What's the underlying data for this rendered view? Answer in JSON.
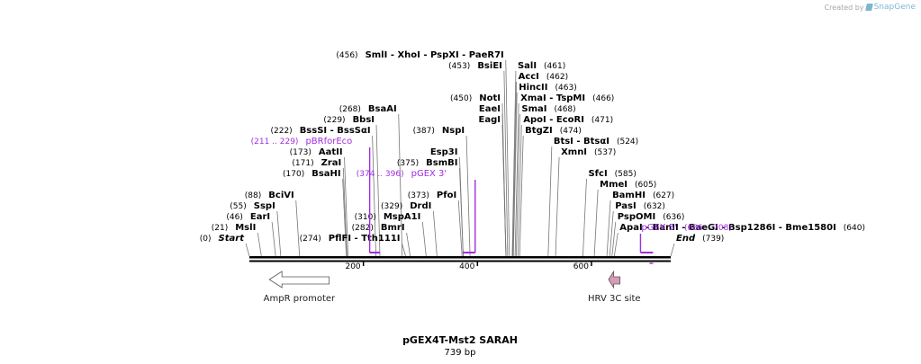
{
  "credit": {
    "prefix": "Created by",
    "brand": "SnapGene"
  },
  "title": "pGEX4T-Mst2 SARAH",
  "length_label": "739 bp",
  "total_bp": 739,
  "ticks": [
    {
      "bp": 200,
      "label": "200"
    },
    {
      "bp": 400,
      "label": "400"
    },
    {
      "bp": 600,
      "label": "600"
    }
  ],
  "sites": [
    {
      "pos_text": "(0)",
      "label": "Start",
      "bp": 0,
      "row": 0,
      "italic": true
    },
    {
      "pos_text": "(21)",
      "label": "MslI",
      "bp": 21,
      "row": 1
    },
    {
      "pos_text": "(46)",
      "label": "EarI",
      "bp": 46,
      "row": 2
    },
    {
      "pos_text": "(55)",
      "label": "SspI",
      "bp": 55,
      "row": 3
    },
    {
      "pos_text": "(88)",
      "label": "BciVI",
      "bp": 88,
      "row": 4
    },
    {
      "pos_text": "(170)",
      "label": "BsaHI",
      "bp": 170,
      "row": 6
    },
    {
      "pos_text": "(171)",
      "label": "ZraI",
      "bp": 171,
      "row": 7
    },
    {
      "pos_text": "(173)",
      "label": "AatII",
      "bp": 173,
      "row": 8
    },
    {
      "pos_text": "(222)",
      "label": "BssSI  - BssSαI",
      "bp": 222,
      "row": 10
    },
    {
      "pos_text": "(229)",
      "label": "BbsI",
      "bp": 229,
      "row": 11
    },
    {
      "pos_text": "(268)",
      "label": "BsaAI",
      "bp": 268,
      "row": 12
    },
    {
      "pos_text": "(274)",
      "label": "PflFI  - Tth111I",
      "bp": 274,
      "row": 0
    },
    {
      "pos_text": "(282)",
      "label": "BmrI",
      "bp": 282,
      "row": 1
    },
    {
      "pos_text": "(310)",
      "label": "MspA1I",
      "bp": 310,
      "row": 2
    },
    {
      "pos_text": "(329)",
      "label": "DrdI",
      "bp": 329,
      "row": 3
    },
    {
      "pos_text": "(373)",
      "label": "PfoI",
      "bp": 373,
      "row": 4
    },
    {
      "pos_text": "(375)",
      "label": "BsmBI",
      "bp": 375,
      "row": 7
    },
    {
      "pos_text": "",
      "label": "Esp3I",
      "bp": 375,
      "row": 8
    },
    {
      "pos_text": "(387)",
      "label": "NspI",
      "bp": 387,
      "row": 10
    },
    {
      "pos_text": "",
      "label": "EagI",
      "bp": 450,
      "row": 11
    },
    {
      "pos_text": "",
      "label": "EaeI",
      "bp": 450,
      "row": 12
    },
    {
      "pos_text": "(450)",
      "label": "NotI",
      "bp": 450,
      "row": 13
    },
    {
      "pos_text": "(453)",
      "label": "BsiEI",
      "bp": 453,
      "row": 16
    },
    {
      "pos_text": "(456)",
      "label": "SmlI  - XhoI  - PspXI  - PaeR7I",
      "bp": 456,
      "row": 17
    },
    {
      "pos_text": "(461)",
      "label": "SalI",
      "bp": 461,
      "row": 16,
      "left": true
    },
    {
      "pos_text": "(462)",
      "label": "AccI",
      "bp": 462,
      "row": 15,
      "left": true
    },
    {
      "pos_text": "(463)",
      "label": "HincII",
      "bp": 463,
      "row": 14,
      "left": true
    },
    {
      "pos_text": "(466)",
      "label": "XmaI  - TspMI",
      "bp": 466,
      "row": 13,
      "left": true
    },
    {
      "pos_text": "(468)",
      "label": "SmaI",
      "bp": 468,
      "row": 12,
      "left": true
    },
    {
      "pos_text": "(471)",
      "label": "ApoI  - EcoRI",
      "bp": 471,
      "row": 11,
      "left": true
    },
    {
      "pos_text": "(474)",
      "label": "BtgZI",
      "bp": 474,
      "row": 10,
      "left": true
    },
    {
      "pos_text": "(524)",
      "label": "BtsI  - BtsαI",
      "bp": 524,
      "row": 9,
      "left": true
    },
    {
      "pos_text": "(537)",
      "label": "XmnI",
      "bp": 537,
      "row": 8,
      "left": true
    },
    {
      "pos_text": "(585)",
      "label": "SfcI",
      "bp": 585,
      "row": 6,
      "left": true
    },
    {
      "pos_text": "(605)",
      "label": "MmeI",
      "bp": 605,
      "row": 5,
      "left": true
    },
    {
      "pos_text": "(627)",
      "label": "BamHI",
      "bp": 627,
      "row": 4,
      "left": true
    },
    {
      "pos_text": "(632)",
      "label": "PasI",
      "bp": 632,
      "row": 3,
      "left": true
    },
    {
      "pos_text": "(636)",
      "label": "PspOMI",
      "bp": 636,
      "row": 2,
      "left": true
    },
    {
      "pos_text": "(640)",
      "label": "ApaI  - BanII  - BaeGI  - Bsp1286I  - Bme1580I",
      "bp": 640,
      "row": 1,
      "left": true
    },
    {
      "pos_text": "(739)",
      "label": "End",
      "bp": 739,
      "row": 0,
      "left": true,
      "italic": true
    }
  ],
  "primers": [
    {
      "name": "pBRforEco",
      "range_text": "(211 .. 229)",
      "start": 211,
      "end": 229,
      "row": 9,
      "direction": "forward"
    },
    {
      "name": "pGEX 3'",
      "range_text": "(374 .. 396)",
      "start": 374,
      "end": 396,
      "row": 6,
      "direction": "reverse"
    },
    {
      "name": "pGEX 5'",
      "range_text": "(686 .. 708)",
      "start": 686,
      "end": 708,
      "row": 1,
      "direction": "forward"
    }
  ],
  "features": [
    {
      "name": "AmpR promoter",
      "start": 35,
      "end": 140,
      "direction": "left",
      "color": "#ffffff"
    },
    {
      "name": "HRV 3C site",
      "start": 630,
      "end": 650,
      "direction": "left",
      "color": "#d99ab5"
    }
  ],
  "colors": {
    "primer": "#a02de0",
    "backbone": "#000000",
    "leader": "#777777"
  }
}
